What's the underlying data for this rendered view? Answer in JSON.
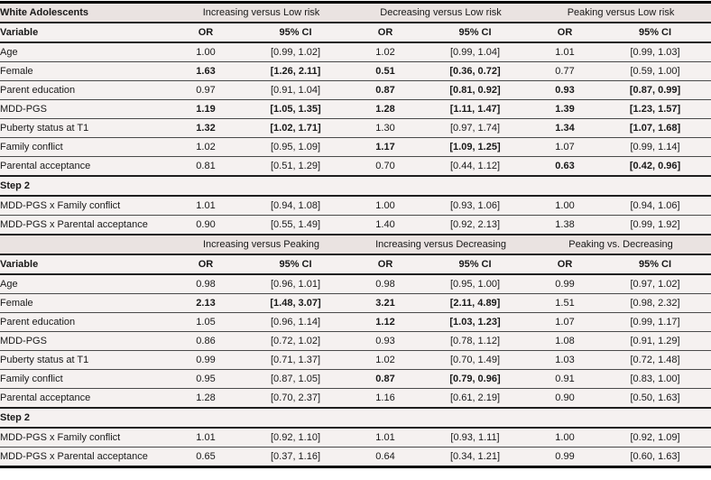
{
  "style": {
    "band_background": "#eae3e1",
    "row_background": "#f5f1f0",
    "border_color": "#000000",
    "text_color": "#181818"
  },
  "table": {
    "variable_header": "Variable",
    "or_label": "OR",
    "ci_label": "95% CI",
    "step2_label": "Step 2",
    "sections": [
      {
        "corner": "White Adolescents",
        "groups": [
          "Increasing versus Low risk",
          "Decreasing versus Low risk",
          "Peaking versus Low risk"
        ],
        "rows": [
          {
            "label": "Age",
            "cells": [
              {
                "or": "1.00",
                "ci": "[0.99, 1.02]",
                "bold": false
              },
              {
                "or": "1.02",
                "ci": "[0.99, 1.04]",
                "bold": false
              },
              {
                "or": "1.01",
                "ci": "[0.99, 1.03]",
                "bold": false
              }
            ]
          },
          {
            "label": "Female",
            "cells": [
              {
                "or": "1.63",
                "ci": "[1.26, 2.11]",
                "bold": true
              },
              {
                "or": "0.51",
                "ci": "[0.36, 0.72]",
                "bold": true
              },
              {
                "or": "0.77",
                "ci": "[0.59, 1.00]",
                "bold": false
              }
            ]
          },
          {
            "label": "Parent education",
            "cells": [
              {
                "or": "0.97",
                "ci": "[0.91, 1.04]",
                "bold": false
              },
              {
                "or": "0.87",
                "ci": "[0.81, 0.92]",
                "bold": true
              },
              {
                "or": "0.93",
                "ci": "[0.87, 0.99]",
                "bold": true
              }
            ]
          },
          {
            "label": "MDD-PGS",
            "cells": [
              {
                "or": "1.19",
                "ci": "[1.05, 1.35]",
                "bold": true
              },
              {
                "or": "1.28",
                "ci": "[1.11, 1.47]",
                "bold": true
              },
              {
                "or": "1.39",
                "ci": "[1.23, 1.57]",
                "bold": true
              }
            ]
          },
          {
            "label": "Puberty status at T1",
            "cells": [
              {
                "or": "1.32",
                "ci": "[1.02, 1.71]",
                "bold": true
              },
              {
                "or": "1.30",
                "ci": "[0.97, 1.74]",
                "bold": false
              },
              {
                "or": "1.34",
                "ci": "[1.07, 1.68]",
                "bold": true
              }
            ]
          },
          {
            "label": "Family conflict",
            "cells": [
              {
                "or": "1.02",
                "ci": "[0.95, 1.09]",
                "bold": false
              },
              {
                "or": "1.17",
                "ci": "[1.09, 1.25]",
                "bold": true
              },
              {
                "or": "1.07",
                "ci": "[0.99, 1.14]",
                "bold": false
              }
            ]
          },
          {
            "label": "Parental acceptance",
            "cells": [
              {
                "or": "0.81",
                "ci": "[0.51, 1.29]",
                "bold": false
              },
              {
                "or": "0.70",
                "ci": "[0.44, 1.12]",
                "bold": false
              },
              {
                "or": "0.63",
                "ci": "[0.42, 0.96]",
                "bold": true
              }
            ]
          }
        ],
        "step2_rows": [
          {
            "label": "MDD-PGS x Family conflict",
            "cells": [
              {
                "or": "1.01",
                "ci": "[0.94, 1.08]",
                "bold": false
              },
              {
                "or": "1.00",
                "ci": "[0.93, 1.06]",
                "bold": false
              },
              {
                "or": "1.00",
                "ci": "[0.94, 1.06]",
                "bold": false
              }
            ]
          },
          {
            "label": "MDD-PGS x Parental acceptance",
            "cells": [
              {
                "or": "0.90",
                "ci": "[0.55, 1.49]",
                "bold": false
              },
              {
                "or": "1.40",
                "ci": "[0.92, 2.13]",
                "bold": false
              },
              {
                "or": "1.38",
                "ci": "[0.99, 1.92]",
                "bold": false
              }
            ]
          }
        ]
      },
      {
        "corner": "",
        "groups": [
          "Increasing versus Peaking",
          "Increasing versus Decreasing",
          "Peaking vs. Decreasing"
        ],
        "rows": [
          {
            "label": "Age",
            "cells": [
              {
                "or": "0.98",
                "ci": "[0.96, 1.01]",
                "bold": false
              },
              {
                "or": "0.98",
                "ci": "[0.95, 1.00]",
                "bold": false
              },
              {
                "or": "0.99",
                "ci": "[0.97, 1.02]",
                "bold": false
              }
            ]
          },
          {
            "label": "Female",
            "cells": [
              {
                "or": "2.13",
                "ci": "[1.48, 3.07]",
                "bold": true
              },
              {
                "or": "3.21",
                "ci": "[2.11, 4.89]",
                "bold": true
              },
              {
                "or": "1.51",
                "ci": "[0.98, 2.32]",
                "bold": false
              }
            ]
          },
          {
            "label": "Parent education",
            "cells": [
              {
                "or": "1.05",
                "ci": "[0.96, 1.14]",
                "bold": false
              },
              {
                "or": "1.12",
                "ci": "[1.03, 1.23]",
                "bold": true
              },
              {
                "or": "1.07",
                "ci": "[0.99, 1.17]",
                "bold": false
              }
            ]
          },
          {
            "label": "MDD-PGS",
            "cells": [
              {
                "or": "0.86",
                "ci": "[0.72, 1.02]",
                "bold": false
              },
              {
                "or": "0.93",
                "ci": "[0.78, 1.12]",
                "bold": false
              },
              {
                "or": "1.08",
                "ci": "[0.91, 1.29]",
                "bold": false
              }
            ]
          },
          {
            "label": "Puberty status at T1",
            "cells": [
              {
                "or": "0.99",
                "ci": "[0.71, 1.37]",
                "bold": false
              },
              {
                "or": "1.02",
                "ci": "[0.70, 1.49]",
                "bold": false
              },
              {
                "or": "1.03",
                "ci": "[0.72, 1.48]",
                "bold": false
              }
            ]
          },
          {
            "label": "Family conflict",
            "cells": [
              {
                "or": "0.95",
                "ci": "[0.87, 1.05]",
                "bold": false
              },
              {
                "or": "0.87",
                "ci": "[0.79, 0.96]",
                "bold": true
              },
              {
                "or": "0.91",
                "ci": "[0.83, 1.00]",
                "bold": false
              }
            ]
          },
          {
            "label": "Parental acceptance",
            "cells": [
              {
                "or": "1.28",
                "ci": "[0.70, 2.37]",
                "bold": false
              },
              {
                "or": "1.16",
                "ci": "[0.61, 2.19]",
                "bold": false
              },
              {
                "or": "0.90",
                "ci": "[0.50, 1.63]",
                "bold": false
              }
            ]
          }
        ],
        "step2_rows": [
          {
            "label": "MDD-PGS x Family conflict",
            "cells": [
              {
                "or": "1.01",
                "ci": "[0.92, 1.10]",
                "bold": false
              },
              {
                "or": "1.01",
                "ci": "[0.93, 1.11]",
                "bold": false
              },
              {
                "or": "1.00",
                "ci": "[0.92, 1.09]",
                "bold": false
              }
            ]
          },
          {
            "label": "MDD-PGS x Parental acceptance",
            "cells": [
              {
                "or": "0.65",
                "ci": "[0.37, 1.16]",
                "bold": false
              },
              {
                "or": "0.64",
                "ci": "[0.34, 1.21]",
                "bold": false
              },
              {
                "or": "0.99",
                "ci": "[0.60, 1.63]",
                "bold": false
              }
            ]
          }
        ]
      }
    ]
  }
}
